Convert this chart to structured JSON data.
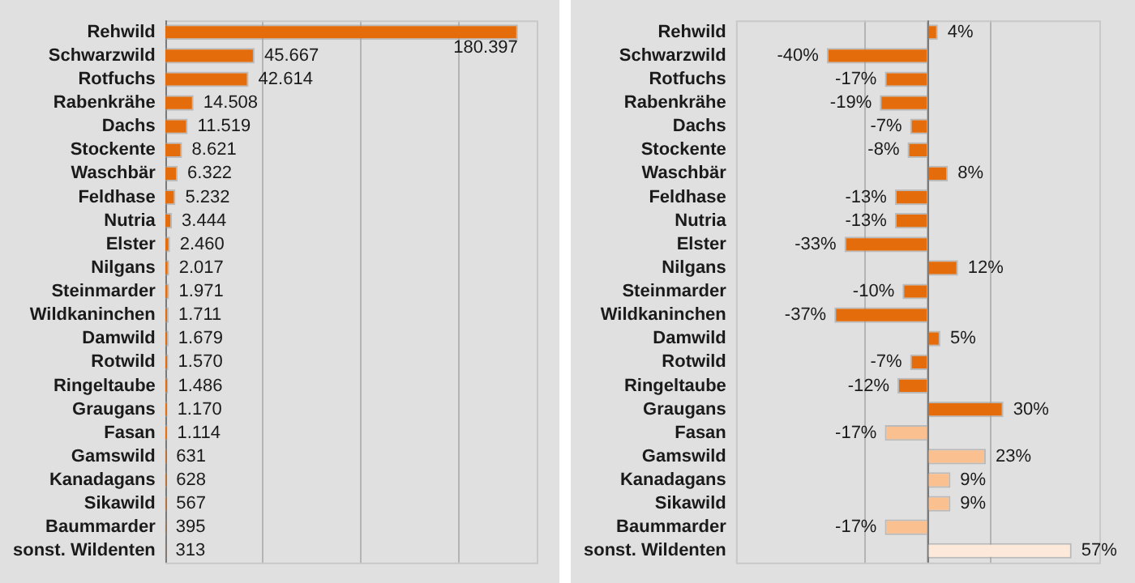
{
  "chart_data": [
    {
      "type": "bar",
      "orientation": "horizontal",
      "categories": [
        "Rehwild",
        "Schwarzwild",
        "Rotfuchs",
        "Rabenkrähe",
        "Dachs",
        "Stockente",
        "Waschbär",
        "Feldhase",
        "Nutria",
        "Elster",
        "Nilgans",
        "Steinmarder",
        "Wildkaninchen",
        "Damwild",
        "Rotwild",
        "Ringeltaube",
        "Graugans",
        "Fasan",
        "Gamswild",
        "Kanadagans",
        "Sikawild",
        "Baummarder",
        "sonst. Wildenten"
      ],
      "values": [
        180397,
        45667,
        42614,
        14508,
        11519,
        8621,
        6322,
        5232,
        3444,
        2460,
        2017,
        1971,
        1711,
        1679,
        1570,
        1486,
        1170,
        1114,
        631,
        628,
        567,
        395,
        313
      ],
      "value_labels": [
        "180.397",
        "45.667",
        "42.614",
        "14.508",
        "11.519",
        "8.621",
        "6.322",
        "5.232",
        "3.444",
        "2.460",
        "2.017",
        "1.971",
        "1.711",
        "1.679",
        "1.570",
        "1.486",
        "1.170",
        "1.114",
        "631",
        "628",
        "567",
        "395",
        "313"
      ],
      "color": "#e46c0a",
      "xlim": [
        0,
        190000
      ],
      "xticks": [
        {
          "value": 50000,
          "label": null
        },
        {
          "value": 100000,
          "label": null
        },
        {
          "value": 150000,
          "label": null
        }
      ],
      "tick_labels": false,
      "grid": "x",
      "legend": false
    },
    {
      "type": "bar",
      "orientation": "horizontal",
      "categories": [
        "Rehwild",
        "Schwarzwild",
        "Rotfuchs",
        "Rabenkrähe",
        "Dachs",
        "Stockente",
        "Waschbär",
        "Feldhase",
        "Nutria",
        "Elster",
        "Nilgans",
        "Steinmarder",
        "Wildkaninchen",
        "Damwild",
        "Rotwild",
        "Ringeltaube",
        "Graugans",
        "Fasan",
        "Gamswild",
        "Kanadagans",
        "Sikawild",
        "Baummarder",
        "sonst. Wildenten"
      ],
      "values": [
        4,
        -40,
        -17,
        -19,
        -7,
        -8,
        8,
        -13,
        -13,
        -33,
        12,
        -10,
        -37,
        5,
        -7,
        -12,
        30,
        -17,
        23,
        9,
        9,
        -17,
        57
      ],
      "value_labels": [
        "4%",
        "-40%",
        "-17%",
        "-19%",
        "-7%",
        "-8%",
        "8%",
        "-13%",
        "-13%",
        "-33%",
        "12%",
        "-10%",
        "-37%",
        "5%",
        "-7%",
        "-12%",
        "30%",
        "-17%",
        "23%",
        "9%",
        "9%",
        "-17%",
        "57%"
      ],
      "colors": [
        "#e46c0a",
        "#e46c0a",
        "#e46c0a",
        "#e46c0a",
        "#e46c0a",
        "#e46c0a",
        "#e46c0a",
        "#e46c0a",
        "#e46c0a",
        "#e46c0a",
        "#e46c0a",
        "#e46c0a",
        "#e46c0a",
        "#e46c0a",
        "#e46c0a",
        "#e46c0a",
        "#e46c0a",
        "#fac090",
        "#fac090",
        "#fac090",
        "#fac090",
        "#fac090",
        "#fde9d9"
      ],
      "xlim": [
        -76,
        68
      ],
      "xticks": [
        {
          "value": -25,
          "label": null
        },
        {
          "value": 0,
          "label": null
        },
        {
          "value": 25,
          "label": null
        }
      ],
      "tick_labels": false,
      "grid": "x",
      "legend": false
    }
  ]
}
